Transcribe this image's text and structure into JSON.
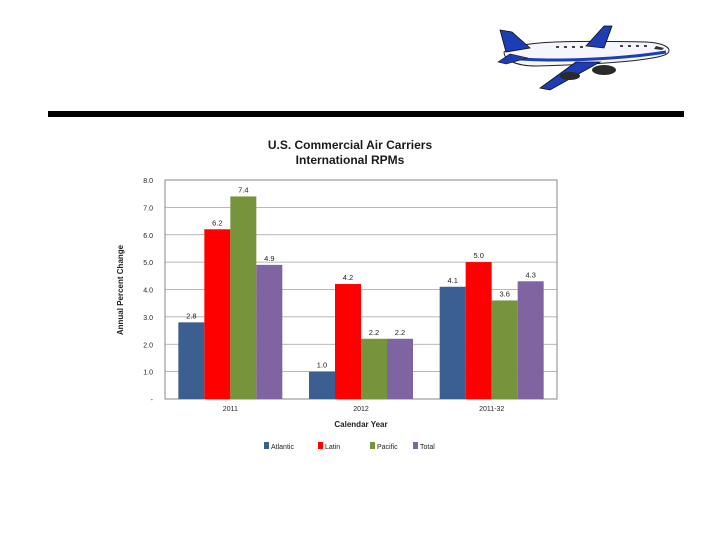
{
  "chart_data": {
    "type": "bar",
    "title": "U.S. Commercial Air Carriers",
    "subtitle": "International RPMs",
    "xlabel": "Calendar Year",
    "ylabel": "Annual Percent Change",
    "categories": [
      "2011",
      "2012",
      "2011-32"
    ],
    "ylim": [
      0,
      8
    ],
    "yticks": [
      {
        "value": 0,
        "label": "-"
      },
      {
        "value": 1,
        "label": "1.0"
      },
      {
        "value": 2,
        "label": "2.0"
      },
      {
        "value": 3,
        "label": "3.0"
      },
      {
        "value": 4,
        "label": "4.0"
      },
      {
        "value": 5,
        "label": "5.0"
      },
      {
        "value": 6,
        "label": "6.0"
      },
      {
        "value": 7,
        "label": "7.0"
      },
      {
        "value": 8,
        "label": "8.0"
      }
    ],
    "grid": true,
    "legend": "bottom",
    "series": [
      {
        "name": "Atlantic",
        "color": "#3c5f91",
        "values": [
          2.8,
          1.0,
          4.1
        ],
        "labels": [
          "2.8",
          "1.0",
          "4.1"
        ]
      },
      {
        "name": "Latin",
        "color": "#ff0000",
        "values": [
          6.2,
          4.2,
          5.0
        ],
        "labels": [
          "6.2",
          "4.2",
          "5.0"
        ]
      },
      {
        "name": "Pacific",
        "color": "#77933c",
        "values": [
          7.4,
          2.2,
          3.6
        ],
        "labels": [
          "7.4",
          "2.2",
          "3.6"
        ]
      },
      {
        "name": "Total",
        "color": "#8064a2",
        "values": [
          4.9,
          2.2,
          4.3
        ],
        "labels": [
          "4.9",
          "2.2",
          "4.3"
        ]
      }
    ]
  },
  "decor": {
    "airplane_icon": "airplane-icon",
    "rule_color": "#000000"
  }
}
